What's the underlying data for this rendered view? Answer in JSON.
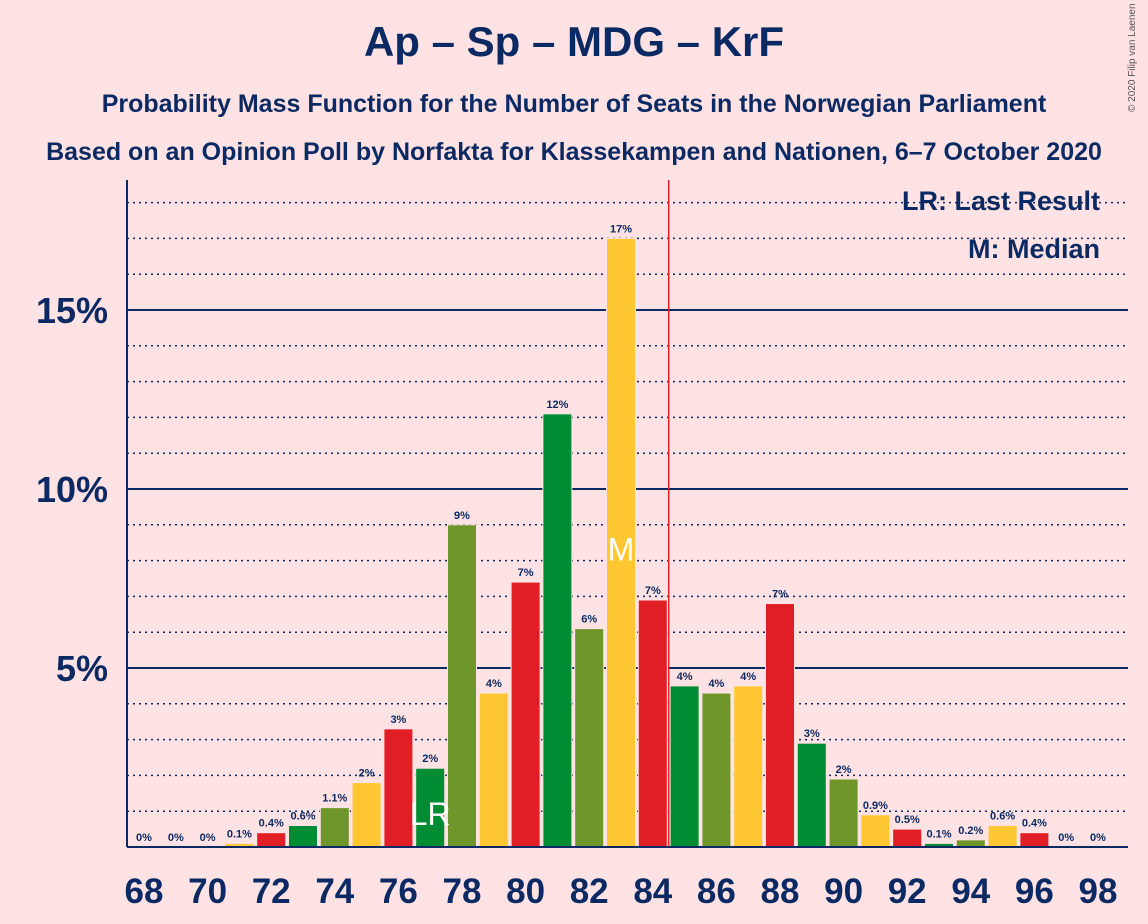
{
  "chart_data": {
    "type": "bar",
    "title": "Ap – Sp – MDG – KrF",
    "subtitle": "Probability Mass Function for the Number of Seats in the Norwegian Parliament",
    "subtitle2": "Based on an Opinion Poll by Norfakta for Klassekampen and Nationen, 6–7 October 2020",
    "copyright": "© 2020 Filip van Laenen",
    "legend": [
      "LR: Last Result",
      "M: Median"
    ],
    "x": [
      68,
      69,
      70,
      71,
      72,
      73,
      74,
      75,
      76,
      77,
      78,
      79,
      80,
      81,
      82,
      83,
      84,
      85,
      86,
      87,
      88,
      89,
      90,
      91,
      92,
      93,
      94,
      95,
      96,
      97,
      98
    ],
    "values": [
      0,
      0,
      0,
      0.1,
      0.4,
      0.6,
      1.1,
      1.8,
      3.3,
      2.2,
      9.0,
      4.3,
      7.4,
      12.1,
      6.1,
      17.0,
      6.9,
      4.5,
      4.3,
      4.5,
      6.8,
      2.9,
      1.9,
      0.9,
      0.5,
      0.1,
      0.2,
      0.6,
      0.4,
      0,
      0
    ],
    "labels": [
      "0%",
      "0%",
      "0%",
      "0.1%",
      "0.4%",
      "0.6%",
      "1.1%",
      "2%",
      "3%",
      "2%",
      "9%",
      "4%",
      "7%",
      "12%",
      "6%",
      "17%",
      "7%",
      "4%",
      "4%",
      "4%",
      "7%",
      "3%",
      "2%",
      "0.9%",
      "0.5%",
      "0.1%",
      "0.2%",
      "0.6%",
      "0.4%",
      "0%",
      "0%"
    ],
    "colors": [
      "#ffc832",
      "#df1e26",
      "#008c32",
      "#6e962a"
    ],
    "x_ticks": [
      68,
      70,
      72,
      74,
      76,
      78,
      80,
      82,
      84,
      86,
      88,
      90,
      92,
      94,
      96,
      98
    ],
    "y_ticks": [
      5,
      10,
      15
    ],
    "y_tick_labels": [
      "5%",
      "10%",
      "15%"
    ],
    "ylim": [
      0,
      18.5
    ],
    "last_result": 77,
    "last_result_label": "LR",
    "median": 83,
    "median_label": "M",
    "majority_line": 84.5
  }
}
